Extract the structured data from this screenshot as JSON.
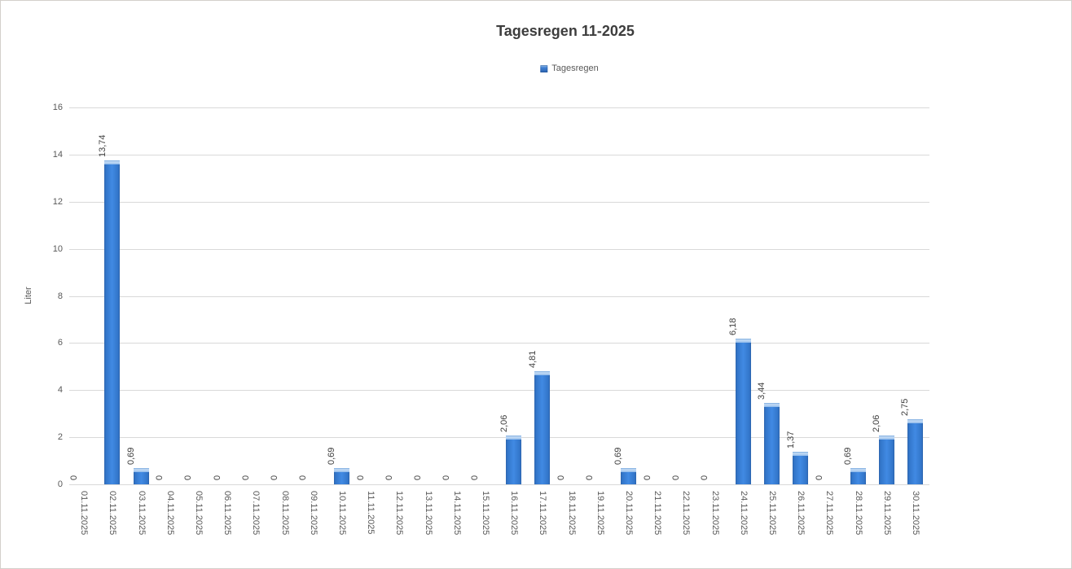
{
  "chart_data": {
    "type": "bar",
    "title": "Tagesregen 11-2025",
    "xlabel": "",
    "ylabel": "Liter",
    "legend": [
      "Tagesregen"
    ],
    "legend_position": "top-center",
    "grid": true,
    "ylim": [
      0,
      16
    ],
    "yticks": [
      0,
      2,
      4,
      6,
      8,
      10,
      12,
      14,
      16
    ],
    "decimal_separator": ",",
    "categories": [
      "01.11.2025",
      "02.11.2025",
      "03.11.2025",
      "04.11.2025",
      "05.11.2025",
      "06.11.2025",
      "07.11.2025",
      "08.11.2025",
      "09.11.2025",
      "10.11.2025",
      "11.11.2025",
      "12.11.2025",
      "13.11.2025",
      "14.11.2025",
      "15.11.2025",
      "16.11.2025",
      "17.11.2025",
      "18.11.2025",
      "19.11.2025",
      "20.11.2025",
      "21.11.2025",
      "22.11.2025",
      "23.11.2025",
      "24.11.2025",
      "25.11.2025",
      "26.11.2025",
      "27.11.2025",
      "28.11.2025",
      "29.11.2025",
      "30.11.2025"
    ],
    "values": [
      0,
      13.74,
      0.69,
      0,
      0,
      0,
      0,
      0,
      0,
      0.69,
      0,
      0,
      0,
      0,
      0,
      2.06,
      4.81,
      0,
      0,
      0.69,
      0,
      0,
      0,
      6.18,
      3.44,
      1.37,
      0,
      0.69,
      2.06,
      2.75
    ],
    "value_labels": [
      "0",
      "13,74",
      "0,69",
      "0",
      "0",
      "0",
      "0",
      "0",
      "0",
      "0,69",
      "0",
      "0",
      "0",
      "0",
      "0",
      "2,06",
      "4,81",
      "0",
      "0",
      "0,69",
      "0",
      "0",
      "0",
      "6,18",
      "3,44",
      "1,37",
      "0",
      "0,69",
      "2,06",
      "2,75"
    ],
    "colors": {
      "bar_mid": "#418ae3",
      "bar_edge": "#2d63ab",
      "bar_cap": "#8db9ea",
      "gridline": "#d9d9d9",
      "axis_text": "#595959",
      "label_text": "#404040",
      "title_text": "#3d3d3d"
    }
  }
}
